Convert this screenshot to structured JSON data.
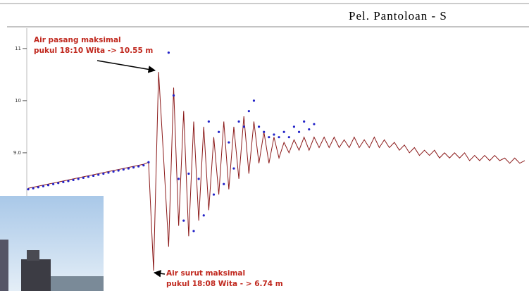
{
  "chart_data": {
    "type": "line",
    "title": "Pel. Pantoloan - S",
    "annotations": [
      {
        "lines": [
          "Air pasang maksimal",
          "pukul 18:10 Wita -> 10.55 m"
        ]
      },
      {
        "lines": [
          "Air surut maksimal",
          "pukul 18:08 Wita - > 6.74 m"
        ]
      }
    ],
    "ylim": [
      6.35,
      11.39
    ],
    "yticks": [
      11,
      10,
      {
        "value": 9,
        "label": "9.0"
      }
    ],
    "grid": false,
    "series": [
      {
        "color": "#8b1a1a",
        "style": "line",
        "values": [
          8.32,
          8.34,
          8.36,
          8.38,
          8.4,
          8.42,
          8.44,
          8.46,
          8.48,
          8.5,
          8.52,
          8.54,
          8.56,
          8.58,
          8.6,
          8.62,
          8.64,
          8.66,
          8.68,
          8.7,
          8.72,
          8.74,
          8.76,
          8.78,
          8.82,
          6.74,
          10.55,
          8.9,
          7.2,
          10.25,
          7.6,
          9.8,
          7.4,
          9.6,
          7.7,
          9.5,
          7.9,
          9.3,
          8.2,
          9.6,
          8.3,
          9.5,
          8.5,
          9.7,
          8.6,
          9.6,
          8.8,
          9.4,
          8.8,
          9.3,
          8.9,
          9.2,
          9.0,
          9.25,
          9.05,
          9.3,
          9.05,
          9.3,
          9.1,
          9.3,
          9.1,
          9.3,
          9.1,
          9.25,
          9.1,
          9.3,
          9.1,
          9.25,
          9.1,
          9.3,
          9.1,
          9.25,
          9.1,
          9.2,
          9.05,
          9.15,
          9.0,
          9.1,
          8.95,
          9.05,
          8.95,
          9.05,
          8.9,
          9.0,
          8.9,
          9.0,
          8.9,
          9.0,
          8.85,
          8.95,
          8.85,
          8.95,
          8.85,
          8.95,
          8.85,
          8.9,
          8.8,
          8.9,
          8.8,
          8.85
        ]
      },
      {
        "color": "#2323c8",
        "style": "dots",
        "values": [
          8.3,
          8.32,
          8.34,
          8.36,
          8.38,
          8.4,
          8.42,
          8.44,
          8.46,
          8.48,
          8.5,
          8.52,
          8.54,
          8.56,
          8.58,
          8.6,
          8.62,
          8.64,
          8.66,
          8.68,
          8.7,
          8.72,
          8.74,
          8.76,
          8.82,
          null,
          null,
          null,
          10.92,
          10.1,
          8.5,
          7.7,
          8.6,
          7.5,
          8.5,
          7.8,
          9.6,
          8.2,
          9.4,
          8.4,
          9.2,
          8.7,
          9.6,
          9.5,
          9.8,
          10.0,
          9.5,
          9.4,
          9.3,
          9.35,
          9.3,
          9.4,
          9.3,
          9.5,
          9.4,
          9.6,
          9.45,
          9.55,
          null,
          null,
          null,
          null,
          null,
          null,
          null,
          null,
          null,
          null,
          null,
          null,
          null,
          null,
          null,
          null,
          null,
          null,
          null,
          null,
          null,
          null,
          null,
          null,
          null,
          null,
          null,
          null,
          null,
          null,
          null,
          null,
          null,
          null,
          null,
          null,
          null,
          null,
          null,
          null,
          null,
          null
        ]
      }
    ]
  }
}
